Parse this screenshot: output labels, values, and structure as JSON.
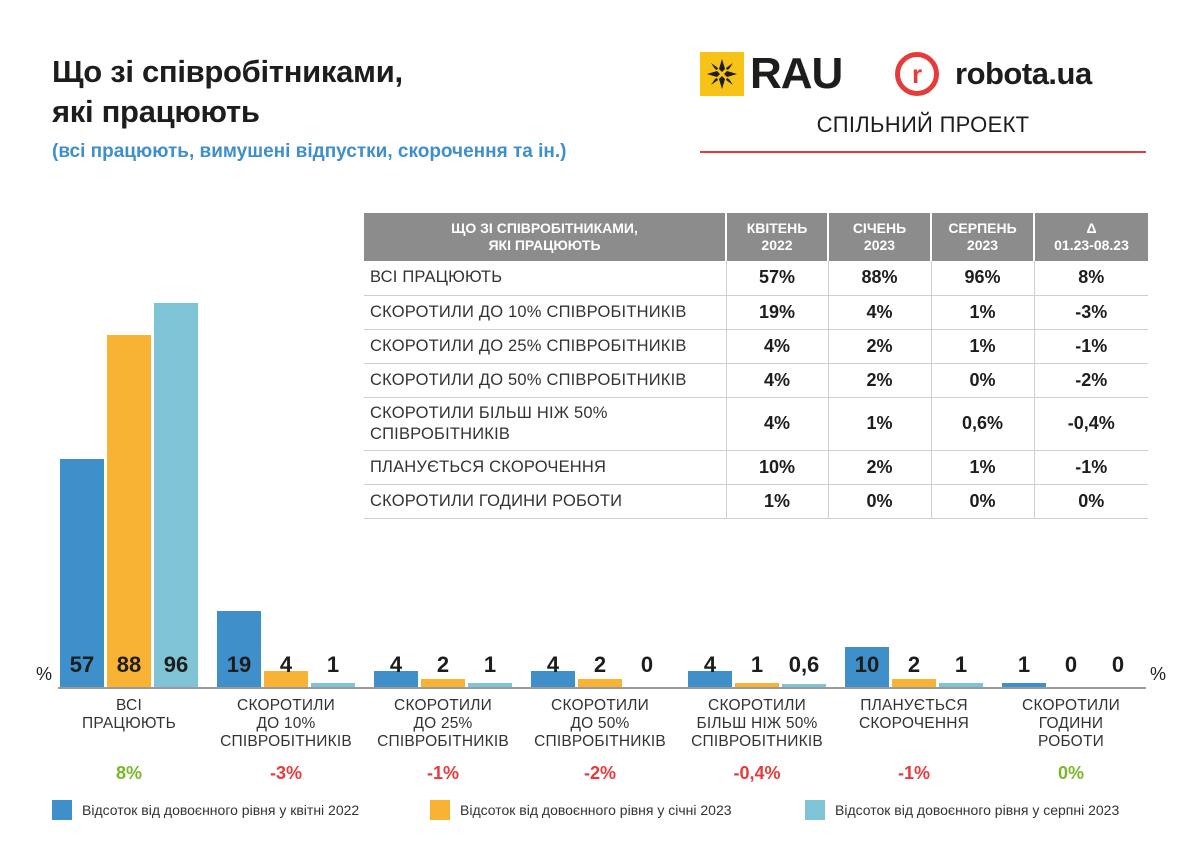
{
  "header": {
    "title_line1": "Що зі співробітниками,",
    "title_line2": "які працюють",
    "subtitle": "(всі працюють, вимушені відпустки, скорочення та ін.)",
    "logo_rau": "RAU",
    "logo_robota": "robota.ua",
    "joint_project": "СПІЛЬНИЙ ПРОЕКТ"
  },
  "colors": {
    "april_2022": "#3f8fcb",
    "january_2023": "#f8b334",
    "august_2023": "#7fc3d6",
    "delta_positive": "#76b82a",
    "delta_negative": "#e63b3b"
  },
  "table": {
    "headers": [
      "ЩО ЗІ СПІВРОБІТНИКАМИ,\nЯКІ ПРАЦЮЮТЬ",
      "КВІТЕНЬ\n2022",
      "СІЧЕНЬ\n2023",
      "СЕРПЕНЬ\n2023",
      "Δ\n01.23-08.23"
    ],
    "rows": [
      [
        "ВСІ ПРАЦЮЮТЬ",
        "57%",
        "88%",
        "96%",
        "8%"
      ],
      [
        "СКОРОТИЛИ ДО 10% СПІВРОБІТНИКІВ",
        "19%",
        "4%",
        "1%",
        "-3%"
      ],
      [
        "СКОРОТИЛИ ДО 25% СПІВРОБІТНИКІВ",
        "4%",
        "2%",
        "1%",
        "-1%"
      ],
      [
        "СКОРОТИЛИ ДО 50% СПІВРОБІТНИКІВ",
        "4%",
        "2%",
        "0%",
        "-2%"
      ],
      [
        "СКОРОТИЛИ БІЛЬШ НІЖ 50%\nСПІВРОБІТНИКІВ",
        "4%",
        "1%",
        "0,6%",
        "-0,4%"
      ],
      [
        "ПЛАНУЄТЬСЯ СКОРОЧЕННЯ",
        "10%",
        "2%",
        "1%",
        "-1%"
      ],
      [
        "СКОРОТИЛИ ГОДИНИ РОБОТИ",
        "1%",
        "0%",
        "0%",
        "0%"
      ]
    ]
  },
  "chart_data": {
    "type": "bar",
    "unit": "%",
    "ylim": [
      0,
      100
    ],
    "categories": [
      "ВСІ\nПРАЦЮЮТЬ",
      "СКОРОТИЛИ\nДО 10%\nСПІВРОБІТНИКІВ",
      "СКОРОТИЛИ\nДО 25%\nСПІВРОБІТНИКІВ",
      "СКОРОТИЛИ\nДО 50%\nСПІВРОБІТНИКІВ",
      "СКОРОТИЛИ\nБІЛЬШ НІЖ 50%\nСПІВРОБІТНИКІВ",
      "ПЛАНУЄТЬСЯ\nСКОРОЧЕННЯ",
      "СКОРОТИЛИ\nГОДИНИ\nРОБОТИ"
    ],
    "series": [
      {
        "name": "Відсоток від довоєнного рівня у квітні 2022",
        "values": [
          57,
          19,
          4,
          4,
          4,
          10,
          1
        ],
        "labels": [
          "57",
          "19",
          "4",
          "4",
          "4",
          "10",
          "1"
        ]
      },
      {
        "name": "Відсоток від довоєнного рівня у січні 2023",
        "values": [
          88,
          4,
          2,
          2,
          1,
          2,
          0
        ],
        "labels": [
          "88",
          "4",
          "2",
          "2",
          "1",
          "2",
          "0"
        ]
      },
      {
        "name": "Відсоток від довоєнного рівня у серпні 2023",
        "values": [
          96,
          1,
          1,
          0,
          0.6,
          1,
          0
        ],
        "labels": [
          "96",
          "1",
          "1",
          "0",
          "0,6",
          "1",
          "0"
        ]
      }
    ],
    "deltas": [
      "8%",
      "-3%",
      "-1%",
      "-2%",
      "-0,4%",
      "-1%",
      "0%"
    ],
    "legend_position": "bottom",
    "grid": false
  }
}
